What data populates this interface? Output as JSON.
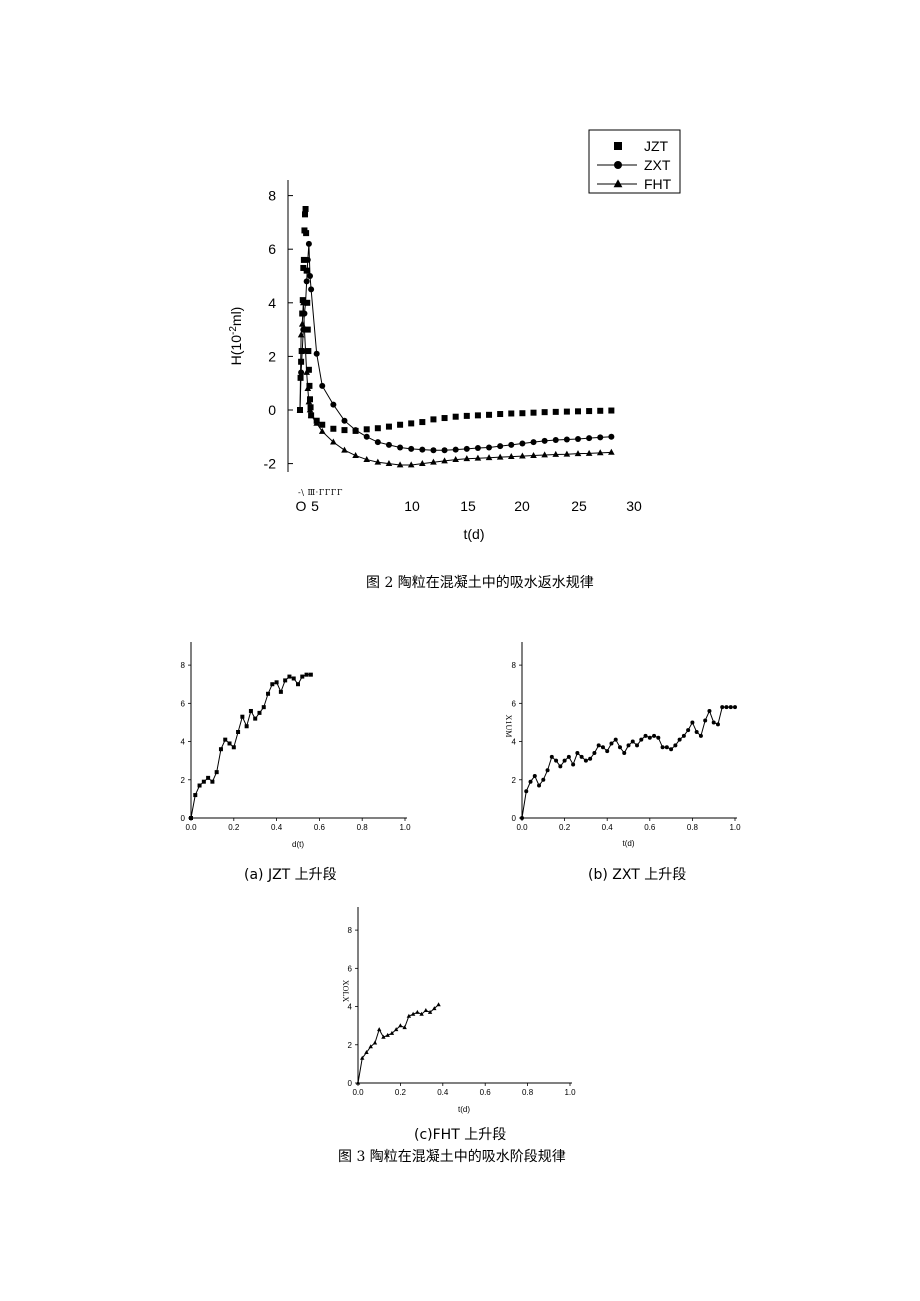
{
  "figure2": {
    "caption": "图 2 陶粒在混凝土中的吸水返水规律",
    "noise_text": "-\\ Ⅲ·ΓΓΓΓ"
  },
  "figure3": {
    "caption": "图 3 陶粒在混凝土中的吸水阶段规律"
  },
  "chart_data": [
    {
      "id": "fig2",
      "type": "line",
      "title": "",
      "xlabel": "t(d)",
      "ylabel": "H(10^-2 ml)",
      "ylabel_base": "H(10",
      "ylabel_sup": "-2",
      "ylabel_tail": "ml)",
      "xlim": [
        0,
        30
      ],
      "ylim": [
        -2.5,
        9
      ],
      "x_ticks": [
        {
          "v": 0,
          "label": "O"
        },
        {
          "v": 5,
          "label": "5"
        },
        {
          "v": 10,
          "label": "10"
        },
        {
          "v": 15,
          "label": "15"
        },
        {
          "v": 20,
          "label": "20"
        },
        {
          "v": 25,
          "label": "25"
        },
        {
          "v": 30,
          "label": "30"
        }
      ],
      "y_ticks": [
        {
          "v": 8,
          "label": "8"
        },
        {
          "v": 6,
          "label": "6"
        },
        {
          "v": 4,
          "label": "4"
        },
        {
          "v": 2,
          "label": "2"
        },
        {
          "v": 0,
          "label": "0"
        },
        {
          "v": -2,
          "label": "-2"
        }
      ],
      "legend_position": "top-right",
      "grid": false,
      "series": [
        {
          "name": "JZT",
          "marker": "square",
          "line": false,
          "x": [
            0,
            0.05,
            0.1,
            0.15,
            0.2,
            0.25,
            0.3,
            0.35,
            0.4,
            0.45,
            0.5,
            0.55,
            0.6,
            0.65,
            0.7,
            0.75,
            0.8,
            0.85,
            0.9,
            0.95,
            1,
            1.5,
            2,
            3,
            4,
            5,
            6,
            7,
            8,
            9,
            10,
            11,
            12,
            13,
            14,
            15,
            16,
            17,
            18,
            19,
            20,
            21,
            22,
            23,
            24,
            25,
            26,
            27,
            28
          ],
          "y": [
            0,
            1.2,
            1.8,
            2.2,
            3.6,
            4.1,
            5.3,
            5.6,
            6.7,
            7.3,
            7.5,
            6.6,
            5.2,
            4.0,
            3.0,
            2.2,
            1.5,
            0.9,
            0.4,
            0.1,
            -0.2,
            -0.4,
            -0.55,
            -0.7,
            -0.75,
            -0.78,
            -0.72,
            -0.68,
            -0.62,
            -0.55,
            -0.5,
            -0.45,
            -0.35,
            -0.3,
            -0.25,
            -0.22,
            -0.2,
            -0.18,
            -0.15,
            -0.13,
            -0.12,
            -0.1,
            -0.08,
            -0.07,
            -0.06,
            -0.05,
            -0.04,
            -0.03,
            -0.02
          ]
        },
        {
          "name": "ZXT",
          "marker": "circle",
          "line": true,
          "x": [
            0,
            0.1,
            0.2,
            0.3,
            0.4,
            0.5,
            0.6,
            0.7,
            0.8,
            0.9,
            1,
            1.5,
            2,
            3,
            4,
            5,
            6,
            7,
            8,
            9,
            10,
            11,
            12,
            13,
            14,
            15,
            16,
            17,
            18,
            19,
            20,
            21,
            22,
            23,
            24,
            25,
            26,
            27,
            28
          ],
          "y": [
            0,
            1.4,
            2.2,
            3.0,
            3.6,
            4.0,
            4.8,
            5.6,
            6.2,
            5.0,
            4.5,
            2.1,
            0.9,
            0.2,
            -0.4,
            -0.75,
            -1.0,
            -1.2,
            -1.3,
            -1.4,
            -1.45,
            -1.48,
            -1.5,
            -1.5,
            -1.48,
            -1.45,
            -1.42,
            -1.4,
            -1.35,
            -1.3,
            -1.25,
            -1.2,
            -1.15,
            -1.12,
            -1.1,
            -1.08,
            -1.05,
            -1.02,
            -1.0
          ]
        },
        {
          "name": "FHT",
          "marker": "triangle",
          "line": true,
          "x": [
            0,
            0.1,
            0.2,
            0.3,
            0.4,
            0.5,
            0.6,
            0.7,
            0.8,
            0.9,
            1,
            1.5,
            2,
            3,
            4,
            5,
            6,
            7,
            8,
            9,
            10,
            11,
            12,
            13,
            14,
            15,
            16,
            17,
            18,
            19,
            20,
            21,
            22,
            23,
            24,
            25,
            26,
            27,
            28
          ],
          "y": [
            0,
            2.8,
            3.2,
            4.0,
            3.0,
            2.2,
            1.4,
            0.8,
            0.3,
            0.0,
            -0.2,
            -0.5,
            -0.8,
            -1.2,
            -1.5,
            -1.7,
            -1.85,
            -1.95,
            -2.0,
            -2.05,
            -2.05,
            -2.0,
            -1.95,
            -1.9,
            -1.85,
            -1.82,
            -1.8,
            -1.78,
            -1.76,
            -1.74,
            -1.72,
            -1.7,
            -1.68,
            -1.66,
            -1.65,
            -1.63,
            -1.62,
            -1.6,
            -1.58
          ]
        }
      ]
    },
    {
      "id": "fig3a",
      "type": "line",
      "title": "",
      "xlabel": "d(t)",
      "ylabel": "",
      "caption": "(a) JZT 上升段",
      "xlim": [
        0,
        1.0
      ],
      "ylim": [
        0,
        9
      ],
      "x_ticks": [
        "0.0",
        "0.2",
        "0.4",
        "0.6",
        "0.8",
        "1.0"
      ],
      "y_ticks": [
        "0",
        "2",
        "4",
        "6",
        "8"
      ],
      "series": [
        {
          "name": "",
          "marker": "square",
          "x": [
            0,
            0.02,
            0.04,
            0.06,
            0.08,
            0.1,
            0.12,
            0.14,
            0.16,
            0.18,
            0.2,
            0.22,
            0.24,
            0.26,
            0.28,
            0.3,
            0.32,
            0.34,
            0.36,
            0.38,
            0.4,
            0.42,
            0.44,
            0.46,
            0.48,
            0.5,
            0.52,
            0.54,
            0.56
          ],
          "y": [
            0,
            1.2,
            1.7,
            1.9,
            2.1,
            1.9,
            2.4,
            3.6,
            4.1,
            3.9,
            3.7,
            4.5,
            5.3,
            4.8,
            5.6,
            5.2,
            5.5,
            5.8,
            6.5,
            7.0,
            7.1,
            6.6,
            7.2,
            7.4,
            7.3,
            7.0,
            7.4,
            7.5,
            7.5
          ]
        }
      ]
    },
    {
      "id": "fig3b",
      "type": "line",
      "title": "",
      "xlabel": "t(d)",
      "ylabel": "X1UM",
      "caption": "(b) ZXT 上升段",
      "xlim": [
        0,
        1.0
      ],
      "ylim": [
        0,
        9
      ],
      "x_ticks": [
        "0.0",
        "0.2",
        "0.4",
        "0.6",
        "0.8",
        "1.0"
      ],
      "y_ticks": [
        "0",
        "2",
        "4",
        "6",
        "8"
      ],
      "series": [
        {
          "name": "",
          "marker": "circle",
          "x": [
            0,
            0.02,
            0.04,
            0.06,
            0.08,
            0.1,
            0.12,
            0.14,
            0.16,
            0.18,
            0.2,
            0.22,
            0.24,
            0.26,
            0.28,
            0.3,
            0.32,
            0.34,
            0.36,
            0.38,
            0.4,
            0.42,
            0.44,
            0.46,
            0.48,
            0.5,
            0.52,
            0.54,
            0.56,
            0.58,
            0.6,
            0.62,
            0.64,
            0.66,
            0.68,
            0.7,
            0.72,
            0.74,
            0.76,
            0.78,
            0.8,
            0.82,
            0.84,
            0.86,
            0.88,
            0.9,
            0.92,
            0.94,
            0.96,
            0.98,
            1.0
          ],
          "y": [
            0,
            1.4,
            1.9,
            2.2,
            1.7,
            2.0,
            2.5,
            3.2,
            3.0,
            2.7,
            3.0,
            3.2,
            2.8,
            3.4,
            3.2,
            3.0,
            3.1,
            3.4,
            3.8,
            3.7,
            3.5,
            3.9,
            4.1,
            3.7,
            3.4,
            3.8,
            4.0,
            3.8,
            4.1,
            4.3,
            4.2,
            4.3,
            4.2,
            3.7,
            3.7,
            3.6,
            3.8,
            4.1,
            4.3,
            4.6,
            5.0,
            4.5,
            4.3,
            5.1,
            5.6,
            5.0,
            4.9,
            5.8,
            5.8,
            5.8,
            5.8
          ]
        }
      ]
    },
    {
      "id": "fig3c",
      "type": "line",
      "title": "",
      "xlabel": "t(d)",
      "ylabel": "XOLX",
      "caption": "(c)FHT 上升段",
      "xlim": [
        0,
        1.0
      ],
      "ylim": [
        0,
        9
      ],
      "x_ticks": [
        "0.0",
        "0.2",
        "0.4",
        "0.6",
        "0.8",
        "1.0"
      ],
      "y_ticks": [
        "0",
        "2",
        "4",
        "6",
        "8"
      ],
      "series": [
        {
          "name": "",
          "marker": "triangle",
          "x": [
            0,
            0.02,
            0.04,
            0.06,
            0.08,
            0.1,
            0.12,
            0.14,
            0.16,
            0.18,
            0.2,
            0.22,
            0.24,
            0.26,
            0.28,
            0.3,
            0.32,
            0.34,
            0.36,
            0.38
          ],
          "y": [
            0,
            1.3,
            1.6,
            1.9,
            2.1,
            2.8,
            2.4,
            2.5,
            2.6,
            2.8,
            3.0,
            2.9,
            3.5,
            3.6,
            3.7,
            3.6,
            3.8,
            3.7,
            3.9,
            4.1
          ]
        }
      ]
    }
  ]
}
